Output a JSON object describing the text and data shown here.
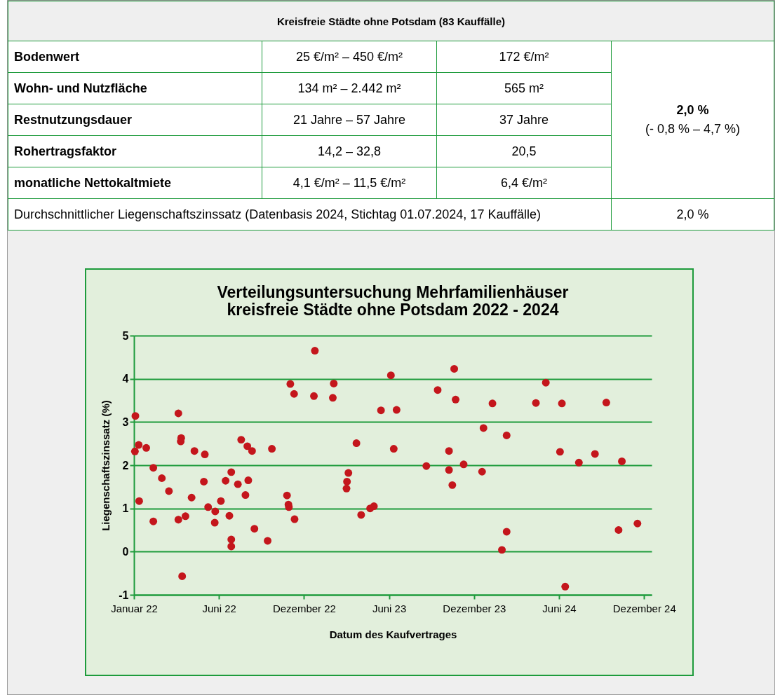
{
  "chart_data": [
    {
      "type": "other",
      "title": "Kreisfreie Städte ohne Potsdam (83 Kauffälle)",
      "annotations": [
        "Bodenwert",
        "25 €/m² – 450 €/m²",
        "172 €/m²",
        "Wohn- und Nutzfläche",
        "134 m² – 2.442 m²",
        "565 m²",
        "Restnutzungsdauer",
        "21 Jahre – 57 Jahre",
        "37 Jahre",
        "Rohertragsfaktor",
        "14,2 – 32,8",
        "20,5",
        "monatliche Nettokaltmiete",
        "4,1 €/m² – 11,5 €/m²",
        "6,4 €/m²",
        "2,0 %",
        "(- 0,8 % – 4,7 %)",
        "Durchschnittlicher Liegenschaftszinssatz (Datenbasis 2024, Stichtag 01.07.2024, 17 Kauffälle)",
        "2,0 %"
      ]
    },
    {
      "type": "scatter",
      "title": "Verteilungsuntersuchung Mehrfamilienhäuser",
      "subtitle": "kreisfreie Städte ohne Potsdam 2022 - 2024",
      "xlabel": "Datum des Kaufvertrages",
      "ylabel": "Liegenschaftszinssatz (%)",
      "x": [
        "2022-01-04",
        "2022-01-03",
        "2022-01-11",
        "2022-01-12",
        "2022-01-27",
        "2022-02-11",
        "2022-02-11",
        "2022-03-01",
        "2022-03-16",
        "2022-04-05",
        "2022-04-05",
        "2022-04-11",
        "2022-04-10",
        "2022-04-20",
        "2022-04-13",
        "2022-05-03",
        "2022-05-09",
        "2022-05-31",
        "2022-05-29",
        "2022-06-07",
        "2022-06-22",
        "2022-06-21",
        "2022-07-04",
        "2022-07-14",
        "2022-07-26",
        "2022-07-22",
        "2022-07-26",
        "2022-07-26",
        "2022-08-09",
        "2022-08-16",
        "2022-08-29",
        "2022-09-08",
        "2022-08-25",
        "2022-08-31",
        "2022-09-13",
        "2022-10-11",
        "2022-10-20",
        "2022-11-21",
        "2022-11-24",
        "2022-11-25",
        "2022-12-07",
        "2022-11-28",
        "2022-12-06",
        "2023-01-19",
        "2023-01-17",
        "2023-02-28",
        "2023-02-26",
        "2023-04-17",
        "2023-03-31",
        "2023-03-28",
        "2023-03-27",
        "2023-04-27",
        "2023-05-16",
        "2023-05-24",
        "2023-06-29",
        "2023-06-08",
        "2023-07-11",
        "2023-07-05",
        "2023-09-12",
        "2023-10-06",
        "2023-11-10",
        "2023-11-13",
        "2023-10-30",
        "2023-10-30",
        "2023-11-06",
        "2023-11-30",
        "2024-01-11",
        "2024-01-30",
        "2024-01-08",
        "2024-02-29",
        "2024-02-29",
        "2024-02-19",
        "2024-05-01",
        "2024-05-22",
        "2024-06-25",
        "2024-06-21",
        "2024-07-02",
        "2024-07-31",
        "2024-09-03",
        "2024-09-27",
        "2024-10-30",
        "2024-10-23",
        "2024-12-02"
      ],
      "series": [
        {
          "color": "#c4161c",
          "values": [
            3.14,
            2.32,
            2.47,
            1.17,
            2.4,
            1.94,
            0.7,
            1.7,
            1.4,
            3.2,
            0.74,
            2.63,
            2.55,
            0.82,
            -0.57,
            1.25,
            2.33,
            2.25,
            1.62,
            1.03,
            0.93,
            0.67,
            1.17,
            1.64,
            1.84,
            0.83,
            0.28,
            0.12,
            1.56,
            2.59,
            2.44,
            2.33,
            1.31,
            1.65,
            0.53,
            0.25,
            2.38,
            1.3,
            1.09,
            1.03,
            0.75,
            3.88,
            3.65,
            4.65,
            3.6,
            3.89,
            3.56,
            2.51,
            1.82,
            1.62,
            1.46,
            0.85,
            1.0,
            1.05,
            4.08,
            3.27,
            3.28,
            2.38,
            1.98,
            3.74,
            4.23,
            3.52,
            2.33,
            1.89,
            1.54,
            2.02,
            2.86,
            3.43,
            1.85,
            2.69,
            0.46,
            0.04,
            3.44,
            3.91,
            3.43,
            2.31,
            -0.81,
            2.06,
            2.26,
            3.45,
            2.09,
            0.5,
            0.65
          ]
        }
      ],
      "xlim": [
        "2022-01-01",
        "2025-01-01"
      ],
      "xticks": [
        {
          "value": "2022-01-01",
          "label": "Januar 22"
        },
        {
          "value": "2022-06-30",
          "label": "Juni 22"
        },
        {
          "value": "2022-12-27",
          "label": "Dezember 22"
        },
        {
          "value": "2023-06-25",
          "label": "Juni 23"
        },
        {
          "value": "2023-12-22",
          "label": "Dezember 23"
        },
        {
          "value": "2024-06-19",
          "label": "Juni 24"
        },
        {
          "value": "2024-12-16",
          "label": "Dezember 24"
        }
      ],
      "ylim": [
        -1,
        5
      ],
      "yticks": [
        -1,
        0,
        1,
        2,
        3,
        4,
        5
      ],
      "grid": "y",
      "marker": "circle"
    }
  ]
}
